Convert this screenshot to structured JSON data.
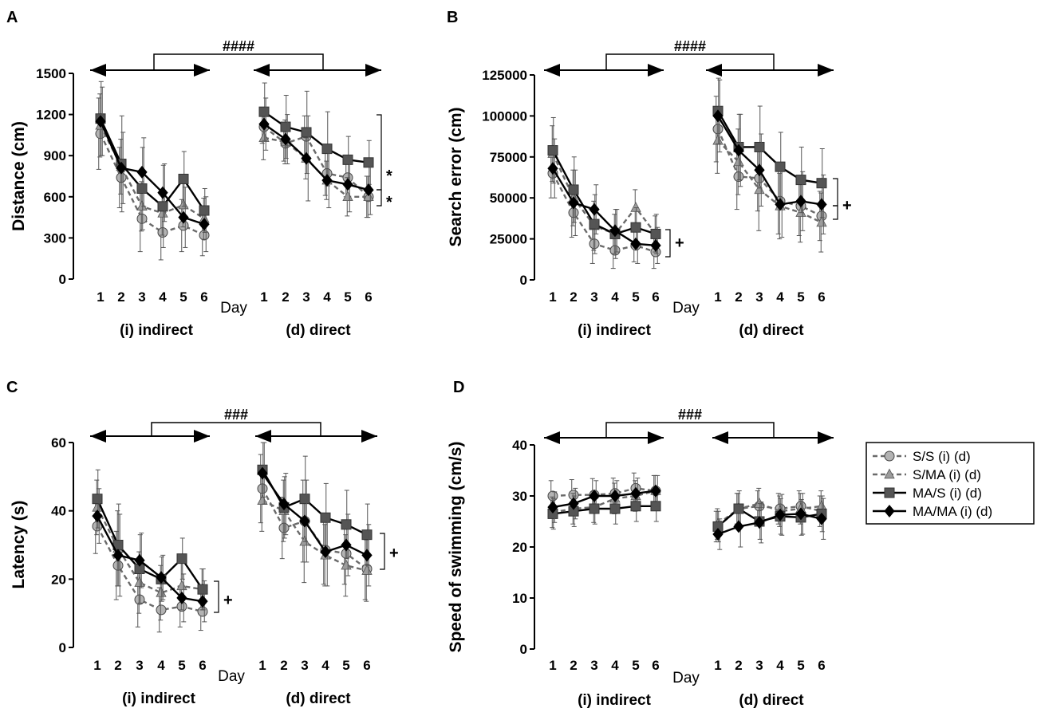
{
  "legend": {
    "entries": [
      {
        "label": "S/S (i) (d)",
        "marker": "circle",
        "fill": "#b3b3b3",
        "dashed": true
      },
      {
        "label": "S/MA (i) (d)",
        "marker": "triangle",
        "fill": "#9c9c9c",
        "dashed": true
      },
      {
        "label": "MA/S (i) (d)",
        "marker": "square",
        "fill": "#555555",
        "dashed": false
      },
      {
        "label": "MA/MA (i) (d)",
        "marker": "diamond",
        "fill": "#000000",
        "dashed": false
      }
    ]
  },
  "chart_data": [
    {
      "panel": "A",
      "type": "line",
      "ylabel": "Distance (cm)",
      "xlabel": "Day",
      "ylim": [
        0,
        1500
      ],
      "yticks": [
        0,
        300,
        600,
        900,
        1200,
        1500
      ],
      "days": [
        "1",
        "2",
        "3",
        "4",
        "5",
        "6"
      ],
      "group_labels": [
        "(i) indirect",
        "(d) direct"
      ],
      "bracket_label": "####",
      "sig": [
        "*",
        "*"
      ],
      "series": [
        {
          "name": "S/S (i) (d)",
          "values": [
            1060,
            740,
            440,
            340,
            390,
            320,
            1110,
            990,
            1040,
            770,
            740,
            600
          ],
          "errors": [
            260,
            220,
            240,
            200,
            190,
            150,
            120,
            130,
            150,
            160,
            140,
            150
          ]
        },
        {
          "name": "S/MA (i) (d)",
          "values": [
            1120,
            820,
            530,
            480,
            540,
            440,
            1030,
            1000,
            880,
            720,
            600,
            600
          ],
          "errors": [
            230,
            200,
            180,
            160,
            160,
            150,
            160,
            160,
            150,
            140,
            140,
            150
          ]
        },
        {
          "name": "MA/S (i) (d)",
          "values": [
            1170,
            840,
            660,
            530,
            730,
            500,
            1220,
            1110,
            1070,
            950,
            870,
            850
          ],
          "errors": [
            270,
            350,
            300,
            300,
            200,
            160,
            210,
            230,
            300,
            270,
            170,
            160
          ]
        },
        {
          "name": "MA/MA (i) (d)",
          "values": [
            1150,
            810,
            780,
            630,
            450,
            400,
            1130,
            1020,
            880,
            720,
            690,
            650
          ],
          "errors": [
            250,
            260,
            250,
            210,
            220,
            200,
            190,
            180,
            310,
            200,
            200,
            180
          ]
        }
      ]
    },
    {
      "panel": "B",
      "type": "line",
      "ylabel": "Search error (cm)",
      "xlabel": "Day",
      "ylim": [
        0,
        125000
      ],
      "yticks": [
        0,
        25000,
        50000,
        75000,
        100000,
        125000
      ],
      "days": [
        "1",
        "2",
        "3",
        "4",
        "5",
        "6"
      ],
      "group_labels": [
        "(i) indirect",
        "(d) direct"
      ],
      "bracket_label": "####",
      "sig": [
        "+",
        "+"
      ],
      "series": [
        {
          "name": "S/S (i) (d)",
          "values": [
            65000,
            41000,
            22000,
            18000,
            21000,
            17000,
            92000,
            63000,
            62000,
            48000,
            45000,
            39000
          ],
          "errors": [
            15000,
            15000,
            12000,
            11000,
            10000,
            10000,
            20000,
            20000,
            20000,
            20000,
            18000,
            15000
          ]
        },
        {
          "name": "S/MA (i) (d)",
          "values": [
            77000,
            50000,
            33000,
            28000,
            44000,
            28000,
            85000,
            72000,
            55000,
            45000,
            41000,
            35000
          ],
          "errors": [
            17000,
            17000,
            15000,
            12000,
            11000,
            11000,
            20000,
            20000,
            25000,
            20000,
            18000,
            18000
          ]
        },
        {
          "name": "MA/S (i) (d)",
          "values": [
            79000,
            55000,
            34000,
            28000,
            32000,
            28000,
            103000,
            81000,
            81000,
            69000,
            61000,
            59000
          ],
          "errors": [
            20000,
            20000,
            18000,
            15000,
            12000,
            12000,
            20000,
            20000,
            25000,
            21000,
            20000,
            21000
          ]
        },
        {
          "name": "MA/MA (i) (d)",
          "values": [
            68000,
            47000,
            43000,
            30000,
            22000,
            21000,
            100000,
            79000,
            67000,
            46000,
            48000,
            46000
          ],
          "errors": [
            18000,
            20000,
            15000,
            13000,
            12000,
            11000,
            22000,
            22000,
            22000,
            20000,
            18000,
            18000
          ]
        }
      ]
    },
    {
      "panel": "C",
      "type": "line",
      "ylabel": "Latency (s)",
      "xlabel": "Day",
      "ylim": [
        0,
        60
      ],
      "yticks": [
        0,
        20,
        40,
        60
      ],
      "days": [
        "1",
        "2",
        "3",
        "4",
        "5",
        "6"
      ],
      "group_labels": [
        "(i) indirect",
        "(d) direct"
      ],
      "bracket_label": "###",
      "sig": [
        "+",
        "+"
      ],
      "series": [
        {
          "name": "S/S (i) (d)",
          "values": [
            35.5,
            24,
            14,
            11,
            12,
            10.5,
            46.5,
            35,
            37,
            28.5,
            27.5,
            23
          ],
          "errors": [
            8,
            10,
            8,
            6.5,
            6,
            5.5,
            10,
            9,
            12,
            10,
            9,
            9
          ]
        },
        {
          "name": "S/MA (i) (d)",
          "values": [
            41,
            29,
            19,
            16,
            18,
            17,
            43,
            40,
            31,
            27,
            24,
            22.5
          ],
          "errors": [
            8,
            11,
            9,
            8,
            7,
            6,
            9,
            9,
            12,
            9,
            9,
            9
          ]
        },
        {
          "name": "MA/S (i) (d)",
          "values": [
            43.5,
            30,
            23,
            20,
            26,
            17,
            52,
            41,
            43.5,
            38,
            36,
            33
          ],
          "errors": [
            8.5,
            12,
            10,
            6.5,
            6,
            6,
            8,
            9,
            12.5,
            10,
            10,
            9
          ]
        },
        {
          "name": "MA/MA (i) (d)",
          "values": [
            38.5,
            27,
            25.5,
            20.5,
            14.5,
            13.5,
            51,
            42,
            37,
            28,
            30,
            27
          ],
          "errors": [
            8,
            12,
            8,
            6.5,
            7,
            6,
            9,
            9,
            12,
            10,
            9,
            9
          ]
        }
      ]
    },
    {
      "panel": "D",
      "type": "line",
      "ylabel": "Speed of swimming (cm/s)",
      "xlabel": "Day",
      "ylim": [
        0,
        40
      ],
      "yticks": [
        0,
        10,
        20,
        30,
        40
      ],
      "days": [
        "1",
        "2",
        "3",
        "4",
        "5",
        "6"
      ],
      "group_labels": [
        "(i) indirect",
        "(d) direct"
      ],
      "bracket_label": "###",
      "sig": [],
      "series": [
        {
          "name": "S/S (i) (d)",
          "values": [
            30,
            30.2,
            30.2,
            30.5,
            31.5,
            31,
            24,
            27.5,
            28,
            27.5,
            28,
            27
          ],
          "errors": [
            3,
            3,
            3.2,
            3,
            3,
            3,
            3,
            3,
            3,
            3,
            3,
            3
          ]
        },
        {
          "name": "S/MA (i) (d)",
          "values": [
            26.8,
            27.5,
            27.8,
            29.5,
            30,
            31,
            24.5,
            27.5,
            28.5,
            27,
            27.5,
            28
          ],
          "errors": [
            3,
            3,
            3,
            3,
            3,
            3,
            3,
            3,
            3,
            3,
            3,
            3
          ]
        },
        {
          "name": "MA/S (i) (d)",
          "values": [
            26.5,
            27,
            27.5,
            27.5,
            28,
            28,
            24,
            27.5,
            25,
            26,
            25.8,
            26.5
          ],
          "errors": [
            3,
            3,
            3,
            3,
            3,
            3,
            3,
            3.5,
            3.5,
            3.5,
            3.5,
            3.5
          ]
        },
        {
          "name": "MA/MA (i) (d)",
          "values": [
            27.8,
            28.5,
            30,
            30,
            30.5,
            31,
            22.5,
            24,
            24.8,
            26.3,
            26.5,
            25.5
          ],
          "errors": [
            3,
            3,
            3,
            3,
            3,
            3,
            3,
            4,
            4,
            4,
            4,
            4
          ]
        }
      ]
    }
  ]
}
